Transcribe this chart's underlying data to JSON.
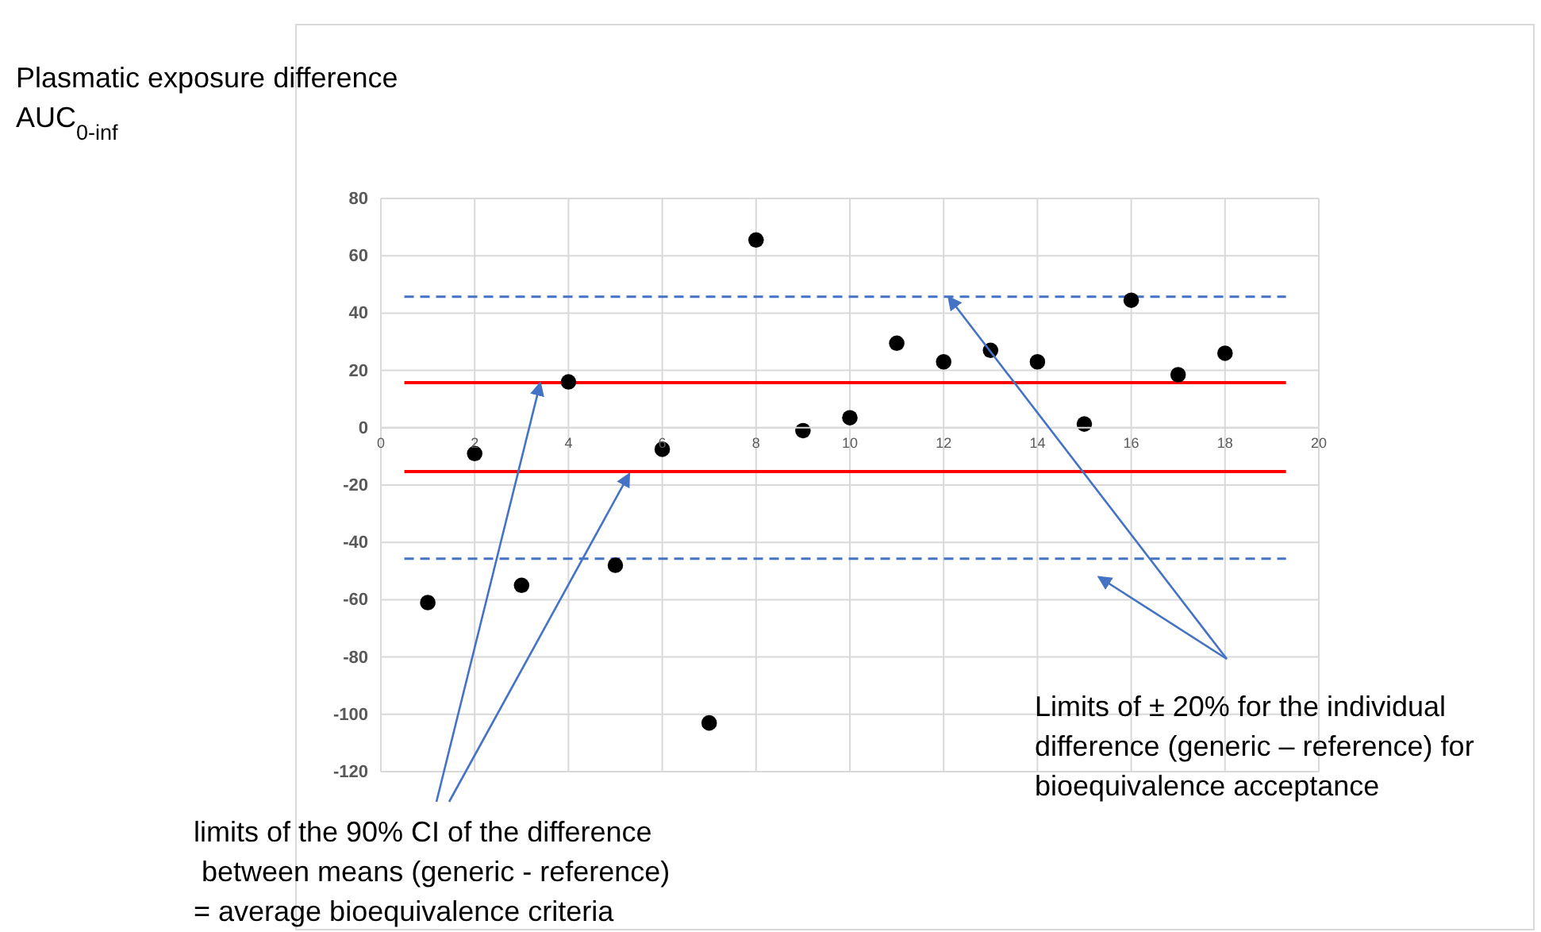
{
  "chart_data": {
    "type": "scatter",
    "title": "Plasmatic exposure difference",
    "subtitle": "AUC$_{0-inf}$",
    "x": [
      1,
      2,
      3,
      4,
      5,
      6,
      7,
      8,
      9,
      10,
      11,
      12,
      13,
      14,
      15,
      16,
      17,
      18
    ],
    "values": [
      -61,
      -9,
      -55,
      16,
      -48,
      -7.5,
      -103,
      65.5,
      -1,
      3.5,
      29.5,
      23,
      27,
      23,
      1.3,
      44.5,
      18.5,
      26
    ],
    "color": "#000000",
    "marker": "circle",
    "xlim": [
      0,
      20
    ],
    "xticks": [
      0,
      2,
      4,
      6,
      8,
      10,
      12,
      14,
      16,
      18,
      20
    ],
    "ylim": [
      -120,
      80
    ],
    "yticks": [
      -120,
      -100,
      -80,
      -60,
      -40,
      -20,
      0,
      20,
      40,
      60,
      80
    ],
    "grid": true,
    "ref_lines": [
      {
        "axis": "y",
        "value": 15.7,
        "color": "#ff0000",
        "line_style": "solid"
      },
      {
        "axis": "y",
        "value": -15.3,
        "color": "#ff0000",
        "line_style": "solid"
      },
      {
        "axis": "y",
        "value": 45.7,
        "color": "#4472c4",
        "line_style": "dashed"
      },
      {
        "axis": "y",
        "value": -45.7,
        "color": "#4472c4",
        "line_style": "dashed"
      }
    ],
    "annotations": [
      {
        "text": "limits of the 90% CI of the difference\n between means (generic - reference)\n= average bioequivalence criteria",
        "x": 3.4,
        "y": 15.7
      },
      {
        "text": "Limits of ± 20% for the individual\ndifference (generic – reference) for\nbioequivalence acceptance",
        "x": 12.1,
        "y": 45.7
      }
    ]
  }
}
